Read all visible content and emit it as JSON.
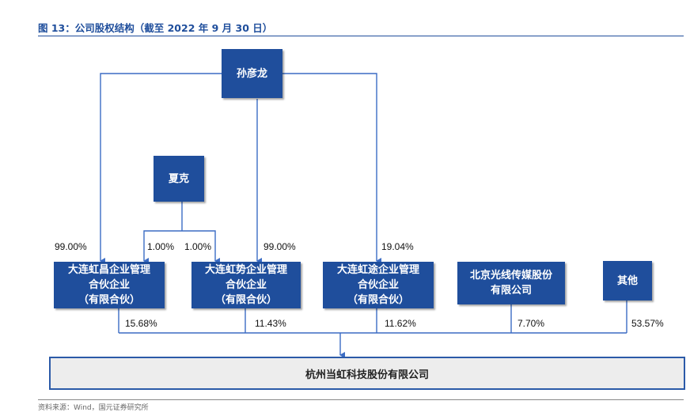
{
  "title": "图 13：公司股权结构（截至 2022 年 9 月 30 日）",
  "source": "资料来源：Wind，国元证券研究所",
  "nodes": {
    "sun_yanlong": "孙彦龙",
    "xia_ke": "夏克",
    "hongchang": [
      "大连虹昌企业管理",
      "合伙企业",
      "（有限合伙）"
    ],
    "hongshi": [
      "大连虹势企业管理",
      "合伙企业",
      "（有限合伙）"
    ],
    "hongtu": [
      "大连虹途企业管理",
      "合伙企业",
      "（有限合伙）"
    ],
    "enlight": [
      "北京光线传媒股份",
      "有限公司"
    ],
    "others": "其他",
    "company": "杭州当虹科技股份有限公司"
  },
  "edges": {
    "sun_to_hongchang": "99.00%",
    "xia_to_hongchang": "1.00%",
    "xia_to_hongshi": "1.00%",
    "sun_to_hongshi": "99.00%",
    "sun_to_hongtu": "19.04%",
    "hongchang_to_company": "15.68%",
    "hongshi_to_company": "11.43%",
    "hongtu_to_company": "11.62%",
    "enlight_to_company": "7.70%",
    "others_to_company": "53.57%"
  },
  "colors": {
    "box": "#1f4e9c",
    "line": "#3b6cc4",
    "company_bg": "#ededed"
  }
}
